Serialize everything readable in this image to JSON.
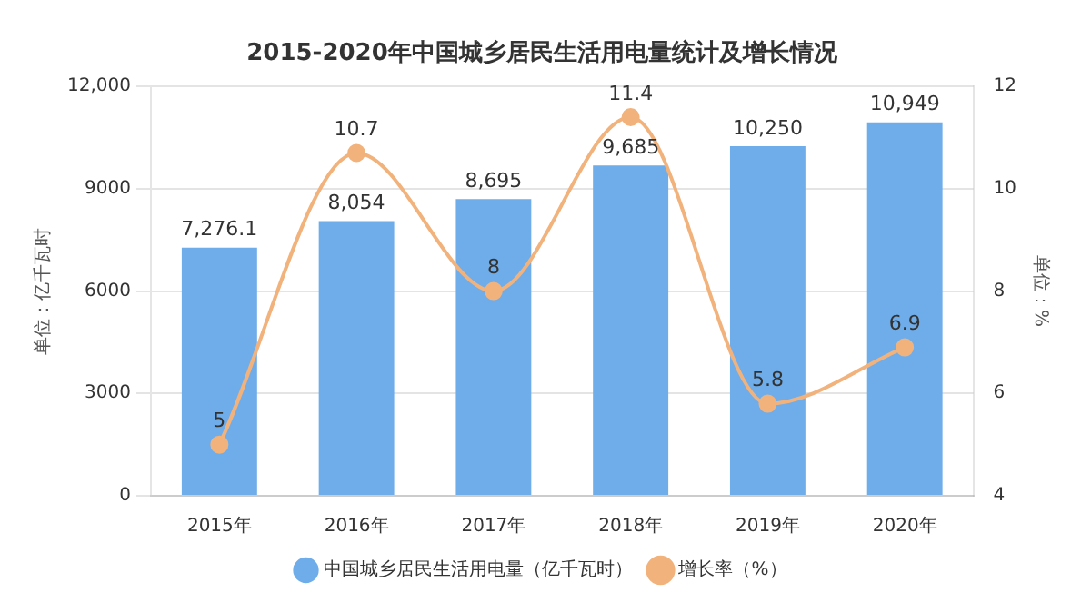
{
  "chart_data": {
    "type": "bar",
    "title": "2015-2020年中国城乡居民生活用电量统计及增长情况",
    "ylabel": "单位：亿千瓦时",
    "y2label": "单位：%",
    "categories": [
      "2015年",
      "2016年",
      "2017年",
      "2018年",
      "2019年",
      "2020年"
    ],
    "series": [
      {
        "name": "中国城乡居民生活用电量（亿千瓦时）",
        "color": "#6fadea",
        "values": [
          7276.1,
          8054,
          8695,
          9685,
          10250,
          10949
        ],
        "value_labels": [
          "7,276.1",
          "8,054",
          "8,695",
          "9,685",
          "10,250",
          "10,949"
        ]
      },
      {
        "name": "增长率（%）",
        "type": "line",
        "axis": "y2",
        "color": "#f2b27c",
        "marker": "circle",
        "values": [
          5,
          10.7,
          8,
          11.4,
          5.8,
          6.9
        ],
        "value_labels": [
          "5",
          "10.7",
          "8",
          "11.4",
          "5.8",
          "6.9"
        ]
      }
    ],
    "ylim": [
      0,
      12000
    ],
    "yticks": [
      0,
      3000,
      6000,
      9000,
      {
        "value": 12000,
        "label": "12,000"
      }
    ],
    "y2lim": [
      4,
      12
    ],
    "y2ticks": [
      4,
      6,
      8,
      10,
      12
    ],
    "grid": "y",
    "legend": "bottom"
  }
}
